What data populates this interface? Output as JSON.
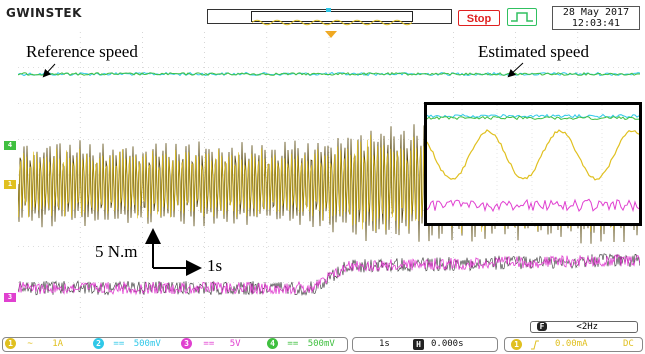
{
  "brand": "GWINSTEK",
  "status": {
    "stop_label": "Stop"
  },
  "datetime": {
    "date": "28 May 2017",
    "time": "12:03:41"
  },
  "annotations": {
    "reference_speed": "Reference speed",
    "estimated_speed": "Estimated speed",
    "torque_scale": "5 N.m",
    "time_scale": "1s"
  },
  "side_markers": {
    "ch4": "4",
    "ch1": "1",
    "ch3": "3"
  },
  "frequency": {
    "icon_letter": "F",
    "value": "<2Hz"
  },
  "channels": [
    {
      "number": "1",
      "coupling": "~",
      "scale": "1A",
      "color": "#e0c020"
    },
    {
      "number": "2",
      "coupling": "==",
      "scale": "500mV",
      "color": "#30c8e8"
    },
    {
      "number": "3",
      "coupling": "==",
      "scale": "5V",
      "color": "#e040d0"
    },
    {
      "number": "4",
      "coupling": "==",
      "scale": "500mV",
      "color": "#40c040"
    }
  ],
  "timebase": {
    "scale": "1s",
    "position_icon": "H",
    "position": "0.000s"
  },
  "trigger": {
    "channel": "1",
    "slope_icon": "rising-edge-icon",
    "level": "0.00mA",
    "coupling": "DC"
  },
  "colors": {
    "ch1": "#e0c020",
    "ch2": "#30c8e8",
    "ch3": "#e040d0",
    "ch4": "#40c040",
    "stop": "#e02020",
    "run": "#30c060"
  }
}
